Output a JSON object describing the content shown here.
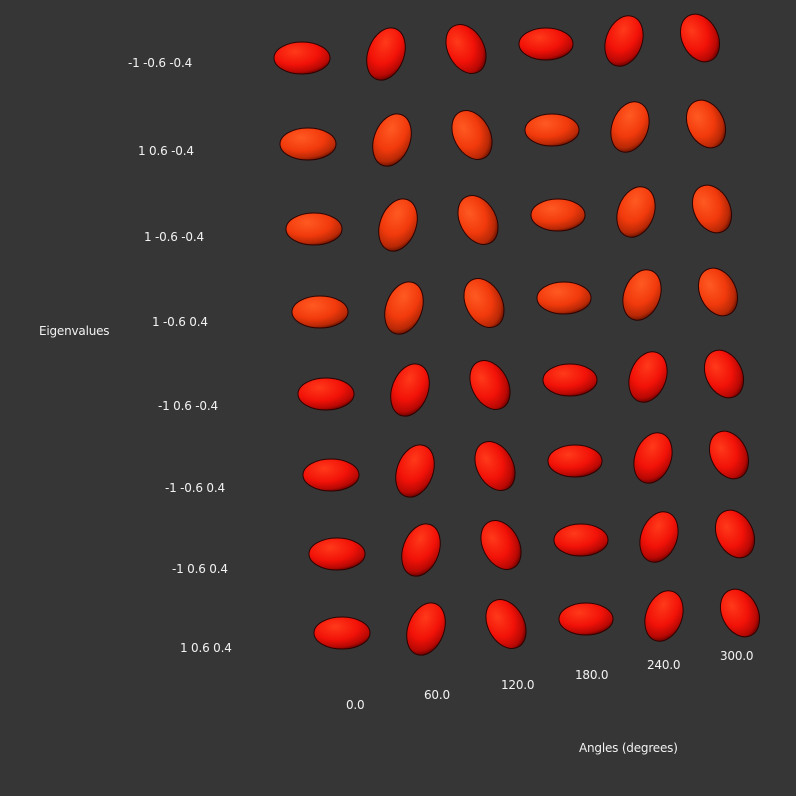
{
  "axis_y_title": "Eigenvalues",
  "axis_x_title": "Angles (degrees)",
  "row_labels": [
    "-1 -0.6 -0.4",
    "1 0.6 -0.4",
    "1 -0.6 -0.4",
    "1 -0.6 0.4",
    "-1 0.6 -0.4",
    "-1 -0.6 0.4",
    "-1 0.6 0.4",
    "1 0.6 0.4"
  ],
  "column_labels": [
    "0.0",
    "60.0",
    "120.0",
    "180.0",
    "240.0",
    "300.0"
  ],
  "colors": {
    "background": "#363636",
    "glyph_red": "#ff1a08",
    "glyph_orange": "#ff4a12",
    "text": "#f2f2f2"
  }
}
